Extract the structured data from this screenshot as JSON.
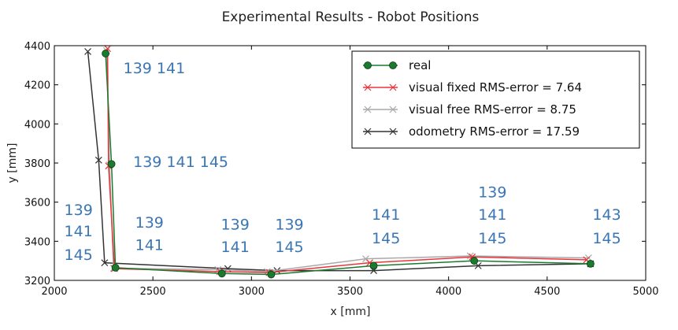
{
  "chart_data": {
    "type": "line",
    "title": "Experimental Results - Robot Positions",
    "xlabel": "x [mm]",
    "ylabel": "y [mm]",
    "xlim": [
      2000,
      5000
    ],
    "ylim": [
      3200,
      4400
    ],
    "xticks": [
      2000,
      2500,
      3000,
      3500,
      4000,
      4500,
      5000
    ],
    "yticks": [
      3200,
      3400,
      3600,
      3800,
      4000,
      4200,
      4400
    ],
    "grid": false,
    "legend_position": "top-right",
    "series": [
      {
        "name": "real",
        "color": "#1a7a2e",
        "marker": "circle",
        "x": [
          2260,
          2290,
          2310,
          2850,
          3100,
          3620,
          4130,
          4720
        ],
        "y": [
          4360,
          3795,
          3265,
          3235,
          3230,
          3275,
          3300,
          3285
        ]
      },
      {
        "name": "visual fixed RMS-error = 7.64",
        "color": "#e8363a",
        "marker": "x",
        "x": [
          2270,
          2275,
          2305,
          2840,
          3090,
          3600,
          4120,
          4700
        ],
        "y": [
          4385,
          3785,
          3260,
          3245,
          3240,
          3290,
          3320,
          3305
        ]
      },
      {
        "name": "visual free RMS-error = 8.75",
        "color": "#a9a9a9",
        "marker": "x",
        "x": [
          2265,
          2280,
          2300,
          2830,
          3080,
          3580,
          4110,
          4710
        ],
        "y": [
          4375,
          3790,
          3262,
          3255,
          3245,
          3310,
          3325,
          3315
        ]
      },
      {
        "name": "odometry RMS-error = 17.59",
        "color": "#333333",
        "marker": "x",
        "x": [
          2170,
          2225,
          2255,
          2880,
          3130,
          3620,
          4150,
          4720
        ],
        "y": [
          4370,
          3815,
          3290,
          3260,
          3250,
          3250,
          3275,
          3285
        ]
      }
    ],
    "annotations": [
      {
        "text": "139 141",
        "x": 2350,
        "y": 4260
      },
      {
        "text": "139 141 145",
        "x": 2400,
        "y": 3780
      },
      {
        "text": "139",
        "x": 2050,
        "y": 3535
      },
      {
        "text": "141",
        "x": 2050,
        "y": 3425
      },
      {
        "text": "145",
        "x": 2050,
        "y": 3305
      },
      {
        "text": "139",
        "x": 2410,
        "y": 3470
      },
      {
        "text": "141",
        "x": 2410,
        "y": 3355
      },
      {
        "text": "139",
        "x": 2845,
        "y": 3460
      },
      {
        "text": "141",
        "x": 2845,
        "y": 3345
      },
      {
        "text": "139",
        "x": 3120,
        "y": 3460
      },
      {
        "text": "145",
        "x": 3120,
        "y": 3345
      },
      {
        "text": "141",
        "x": 3610,
        "y": 3510
      },
      {
        "text": "145",
        "x": 3610,
        "y": 3390
      },
      {
        "text": "139",
        "x": 4150,
        "y": 3625
      },
      {
        "text": "141",
        "x": 4150,
        "y": 3510
      },
      {
        "text": "145",
        "x": 4150,
        "y": 3390
      },
      {
        "text": "143",
        "x": 4730,
        "y": 3510
      },
      {
        "text": "145",
        "x": 4730,
        "y": 3390
      }
    ]
  }
}
